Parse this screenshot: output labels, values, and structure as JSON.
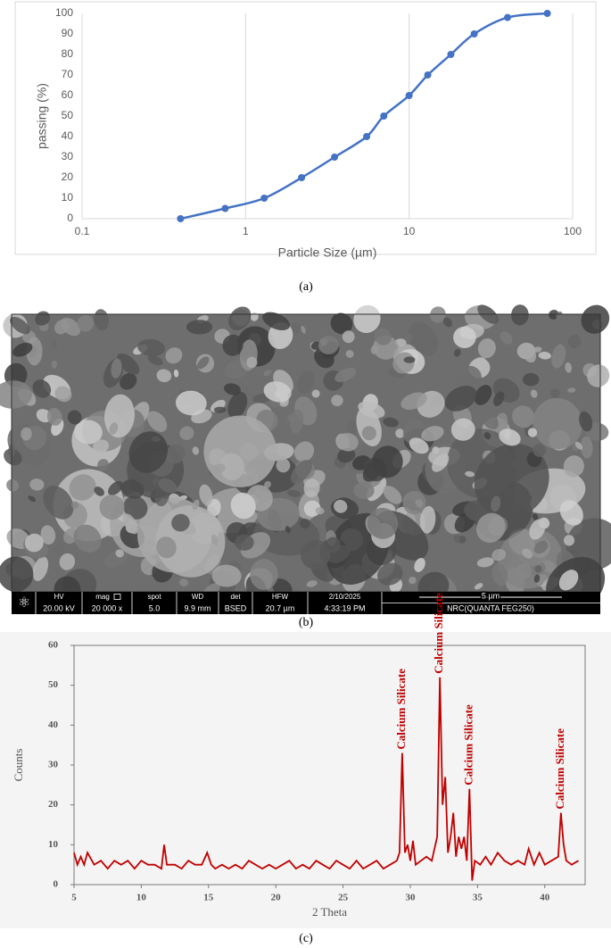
{
  "chart_data": [
    {
      "type": "line",
      "caption": "(a)",
      "xlabel": "Particle Size (µm)",
      "ylabel": "passing (%)",
      "xscale": "log",
      "xlim": [
        0.1,
        100
      ],
      "xticks": [
        0.1,
        1,
        10,
        100
      ],
      "ylim": [
        0,
        100
      ],
      "yticks": [
        0,
        10,
        20,
        30,
        40,
        50,
        60,
        70,
        80,
        90,
        100
      ],
      "grid": true,
      "color": "#4472c4",
      "x": [
        0.4,
        0.75,
        1.3,
        2.2,
        3.5,
        5.5,
        7,
        10,
        13,
        18,
        25,
        40,
        70
      ],
      "values": [
        0,
        5,
        10,
        20,
        30,
        40,
        50,
        60,
        70,
        80,
        90,
        98,
        100
      ]
    },
    {
      "type": "line",
      "caption": "(c)",
      "xlabel": "2 Theta",
      "ylabel": "Counts",
      "xlim": [
        5,
        43
      ],
      "xticks": [
        5,
        10,
        15,
        20,
        25,
        30,
        35,
        40
      ],
      "ylim": [
        0,
        60
      ],
      "yticks": [
        0,
        10,
        20,
        30,
        40,
        50,
        60
      ],
      "grid": false,
      "color": "#c00000",
      "annotations": [
        {
          "text": "Calcium  Silicate",
          "x": 29.4
        },
        {
          "text": "Calcium  Silicate",
          "x": 32.2
        },
        {
          "text": "Calcium  Silicate",
          "x": 34.4
        },
        {
          "text": "Calcium  Silicate",
          "x": 41.2
        }
      ],
      "x": [
        5,
        5.25,
        5.5,
        5.75,
        6,
        6.5,
        7,
        7.5,
        8,
        8.5,
        9,
        9.5,
        10,
        10.5,
        11,
        11.5,
        11.7,
        11.9,
        12.5,
        13,
        13.5,
        14,
        14.5,
        14.9,
        15.2,
        15.5,
        16,
        16.5,
        17,
        17.5,
        18,
        18.5,
        19,
        19.5,
        20,
        20.5,
        21,
        21.5,
        22,
        22.5,
        23,
        23.5,
        24,
        24.5,
        25,
        25.5,
        26,
        26.5,
        27,
        27.5,
        28,
        28.5,
        29,
        29.2,
        29.4,
        29.6,
        29.8,
        30,
        30.2,
        30.4,
        30.8,
        31.2,
        31.6,
        32,
        32.2,
        32.4,
        32.6,
        32.8,
        33,
        33.2,
        33.4,
        33.6,
        33.8,
        34,
        34.2,
        34.4,
        34.6,
        34.8,
        35.2,
        35.6,
        36,
        36.5,
        37,
        37.5,
        38,
        38.5,
        38.8,
        39.2,
        39.6,
        40,
        40.5,
        41,
        41.2,
        41.4,
        41.6,
        42,
        42.5
      ],
      "values": [
        8,
        5,
        7,
        5,
        8,
        5,
        6,
        4,
        6,
        5,
        6,
        4,
        6,
        5,
        5,
        4,
        10,
        5,
        5,
        4,
        6,
        5,
        5,
        8,
        5,
        4,
        5,
        4,
        5,
        4,
        6,
        5,
        4,
        5,
        4,
        5,
        6,
        4,
        5,
        4,
        6,
        5,
        4,
        6,
        5,
        4,
        6,
        4,
        5,
        6,
        4,
        5,
        6,
        8,
        33,
        8,
        10,
        6,
        11,
        5,
        6,
        7,
        6,
        12,
        52,
        20,
        27,
        8,
        12,
        18,
        7,
        12,
        9,
        12,
        6,
        24,
        1,
        6,
        5,
        7,
        5,
        8,
        6,
        5,
        6,
        5,
        9,
        5,
        8,
        5,
        6,
        7,
        18,
        10,
        6,
        5,
        6
      ]
    }
  ],
  "sem_image": {
    "caption": "(b)",
    "databar": [
      {
        "label": "HV",
        "value": "20.00 kV"
      },
      {
        "label": "mag",
        "value": "20 000 x"
      },
      {
        "label": "spot",
        "value": "5.0"
      },
      {
        "label": "WD",
        "value": "9.9 mm"
      },
      {
        "label": "det",
        "value": "BSED"
      },
      {
        "label": "HFW",
        "value": "20.7 µm"
      },
      {
        "label": "2/10/2025",
        "value": "4:33:19 PM"
      }
    ],
    "scale_bar": "5 µm",
    "instrument": "NRC(QUANTA FEG250)"
  }
}
